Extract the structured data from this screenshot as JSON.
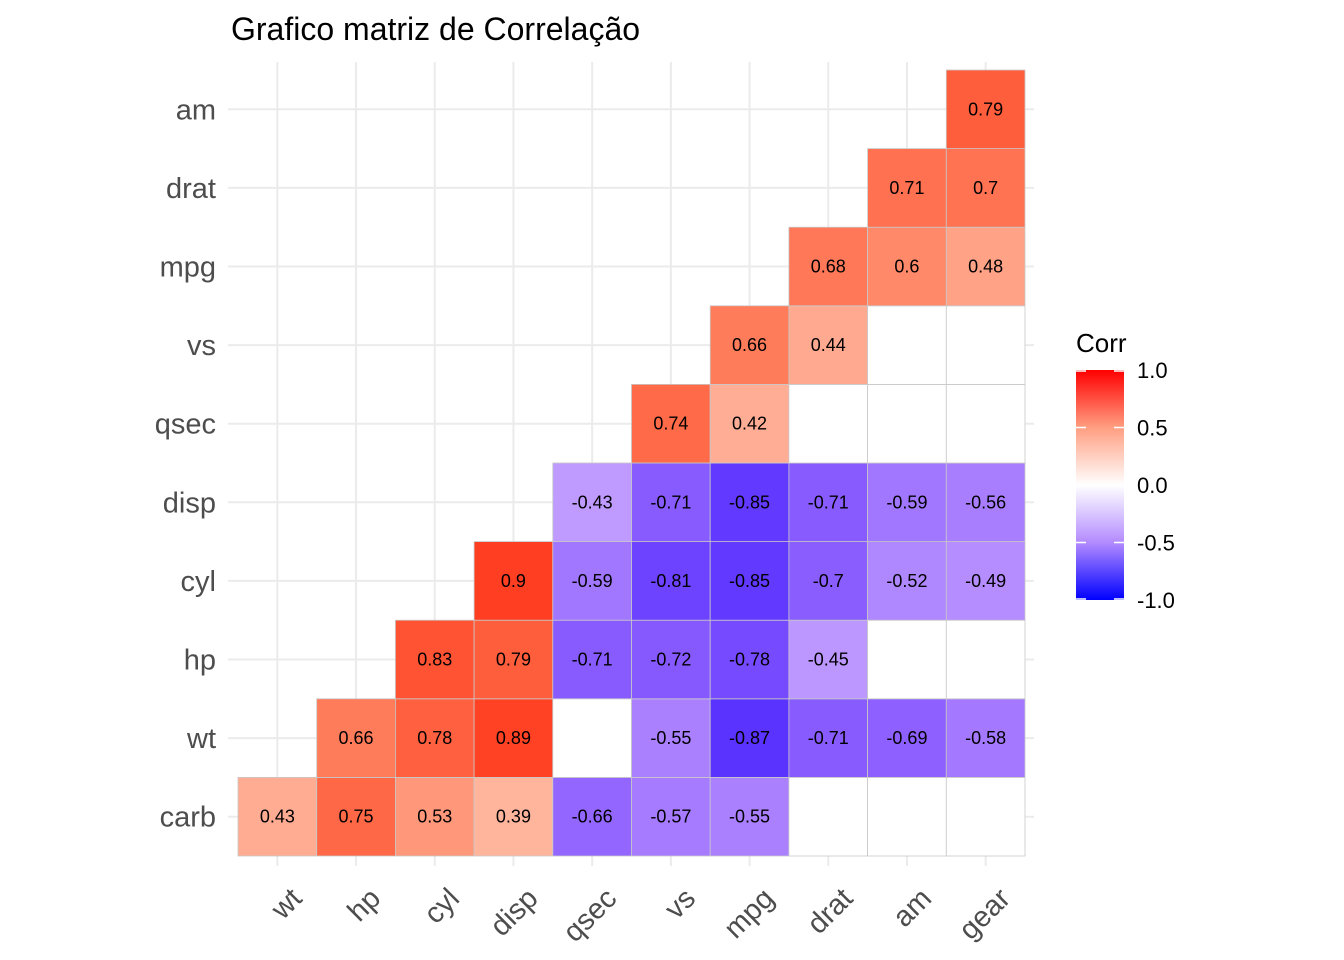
{
  "chart_data": {
    "type": "heatmap",
    "title": "Grafico matriz de Correlação",
    "x_categories": [
      "wt",
      "hp",
      "cyl",
      "disp",
      "qsec",
      "vs",
      "mpg",
      "drat",
      "am",
      "gear"
    ],
    "y_categories": [
      "carb",
      "wt",
      "hp",
      "cyl",
      "disp",
      "qsec",
      "vs",
      "mpg",
      "drat",
      "am"
    ],
    "cells": [
      {
        "x": "wt",
        "y": "carb",
        "value": 0.43
      },
      {
        "x": "hp",
        "y": "carb",
        "value": 0.75
      },
      {
        "x": "cyl",
        "y": "carb",
        "value": 0.53
      },
      {
        "x": "disp",
        "y": "carb",
        "value": 0.39
      },
      {
        "x": "qsec",
        "y": "carb",
        "value": -0.66
      },
      {
        "x": "vs",
        "y": "carb",
        "value": -0.57
      },
      {
        "x": "mpg",
        "y": "carb",
        "value": -0.55
      },
      {
        "x": "drat",
        "y": "carb",
        "value": null
      },
      {
        "x": "am",
        "y": "carb",
        "value": null
      },
      {
        "x": "gear",
        "y": "carb",
        "value": null
      },
      {
        "x": "hp",
        "y": "wt",
        "value": 0.66
      },
      {
        "x": "cyl",
        "y": "wt",
        "value": 0.78
      },
      {
        "x": "disp",
        "y": "wt",
        "value": 0.89
      },
      {
        "x": "qsec",
        "y": "wt",
        "value": null
      },
      {
        "x": "vs",
        "y": "wt",
        "value": -0.55
      },
      {
        "x": "mpg",
        "y": "wt",
        "value": -0.87
      },
      {
        "x": "drat",
        "y": "wt",
        "value": -0.71
      },
      {
        "x": "am",
        "y": "wt",
        "value": -0.69
      },
      {
        "x": "gear",
        "y": "wt",
        "value": -0.58
      },
      {
        "x": "cyl",
        "y": "hp",
        "value": 0.83
      },
      {
        "x": "disp",
        "y": "hp",
        "value": 0.79
      },
      {
        "x": "qsec",
        "y": "hp",
        "value": -0.71
      },
      {
        "x": "vs",
        "y": "hp",
        "value": -0.72
      },
      {
        "x": "mpg",
        "y": "hp",
        "value": -0.78
      },
      {
        "x": "drat",
        "y": "hp",
        "value": -0.45
      },
      {
        "x": "am",
        "y": "hp",
        "value": null
      },
      {
        "x": "gear",
        "y": "hp",
        "value": null
      },
      {
        "x": "disp",
        "y": "cyl",
        "value": 0.9
      },
      {
        "x": "qsec",
        "y": "cyl",
        "value": -0.59
      },
      {
        "x": "vs",
        "y": "cyl",
        "value": -0.81
      },
      {
        "x": "mpg",
        "y": "cyl",
        "value": -0.85
      },
      {
        "x": "drat",
        "y": "cyl",
        "value": -0.7
      },
      {
        "x": "am",
        "y": "cyl",
        "value": -0.52
      },
      {
        "x": "gear",
        "y": "cyl",
        "value": -0.49
      },
      {
        "x": "qsec",
        "y": "disp",
        "value": -0.43
      },
      {
        "x": "vs",
        "y": "disp",
        "value": -0.71
      },
      {
        "x": "mpg",
        "y": "disp",
        "value": -0.85
      },
      {
        "x": "drat",
        "y": "disp",
        "value": -0.71
      },
      {
        "x": "am",
        "y": "disp",
        "value": -0.59
      },
      {
        "x": "gear",
        "y": "disp",
        "value": -0.56
      },
      {
        "x": "vs",
        "y": "qsec",
        "value": 0.74
      },
      {
        "x": "mpg",
        "y": "qsec",
        "value": 0.42
      },
      {
        "x": "drat",
        "y": "qsec",
        "value": null
      },
      {
        "x": "am",
        "y": "qsec",
        "value": null
      },
      {
        "x": "gear",
        "y": "qsec",
        "value": null
      },
      {
        "x": "mpg",
        "y": "vs",
        "value": 0.66
      },
      {
        "x": "drat",
        "y": "vs",
        "value": 0.44
      },
      {
        "x": "am",
        "y": "vs",
        "value": null
      },
      {
        "x": "gear",
        "y": "vs",
        "value": null
      },
      {
        "x": "drat",
        "y": "mpg",
        "value": 0.68
      },
      {
        "x": "am",
        "y": "mpg",
        "value": 0.6
      },
      {
        "x": "gear",
        "y": "mpg",
        "value": 0.48
      },
      {
        "x": "am",
        "y": "drat",
        "value": 0.71
      },
      {
        "x": "gear",
        "y": "drat",
        "value": 0.7
      },
      {
        "x": "gear",
        "y": "am",
        "value": 0.79
      }
    ],
    "legend": {
      "title": "Corr",
      "ticks": [
        "1.0",
        "0.5",
        "0.0",
        "-0.5",
        "-1.0"
      ],
      "tick_values": [
        1.0,
        0.5,
        0.0,
        -0.5,
        -1.0
      ],
      "range": [
        -1,
        1
      ],
      "low_color": "#0000FF",
      "mid_color": "#FFFFFF",
      "high_color": "#FF0000"
    },
    "grid": true,
    "na_color": "#FFFFFF",
    "cell_border_color": "#C8C8C8"
  }
}
